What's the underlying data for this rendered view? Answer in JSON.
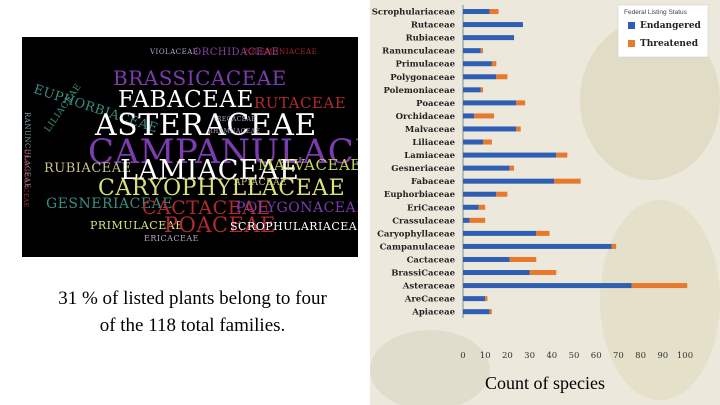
{
  "wordcloud": {
    "words": [
      {
        "text": "VIOLACEAE",
        "color": "#b8a9c9"
      },
      {
        "text": "ORCHIDACEAE",
        "color": "#8b3fa8"
      },
      {
        "text": "POLEMONIACEAE",
        "color": "#b02a30"
      },
      {
        "text": "EUPHORBIACEAE",
        "color": "#3a8f7f"
      },
      {
        "text": "BRASSICACEAE",
        "color": "#7b3cb0"
      },
      {
        "text": "LILIACEAE",
        "color": "#3a8f7f"
      },
      {
        "text": "FABACEAE",
        "color": "#ffffff"
      },
      {
        "text": "RUTACEAE",
        "color": "#b02a30"
      },
      {
        "text": "ASTERACEAE",
        "color": "#ffffff"
      },
      {
        "text": "CAMPANULACEAE",
        "color": "#7b3cb0"
      },
      {
        "text": "RUBIACEAE",
        "color": "#c8c88a"
      },
      {
        "text": "LAMIACEAE",
        "color": "#ffffff"
      },
      {
        "text": "MALVACEAE",
        "color": "#c8d458"
      },
      {
        "text": "APIACEAE",
        "color": "#c8c88a"
      },
      {
        "text": "CARYOPHYLLACEAE",
        "color": "#d9e27a"
      },
      {
        "text": "GESNERIACEAE",
        "color": "#3a8f7f"
      },
      {
        "text": "CACTACEAE",
        "color": "#b02a30"
      },
      {
        "text": "POLYGONACEAE",
        "color": "#7b3cb0"
      },
      {
        "text": "PRIMULACEAE",
        "color": "#d9e27a"
      },
      {
        "text": "POACEAE",
        "color": "#b02a30"
      },
      {
        "text": "SCROPHULARIACEAE",
        "color": "#ffffff"
      },
      {
        "text": "ERICACEAE",
        "color": "#b8a9c9"
      },
      {
        "text": "RANUNCULACEAE",
        "color": "#8aa0a8"
      },
      {
        "text": "CRASSULACEAE",
        "color": "#b02a30"
      },
      {
        "text": "RHAMNACEAE",
        "color": "#b8a9c9"
      },
      {
        "text": "ARECACEAE",
        "color": "#b8a9c9"
      }
    ]
  },
  "caption": {
    "pct": "31",
    "pct_sym": " %",
    "mid": " of listed plants belong to four",
    "line2a": "of the ",
    "num": "118",
    "line2b": " total families."
  },
  "chart_data": {
    "type": "bar",
    "orientation": "horizontal",
    "stacked": true,
    "legend_title": "Federal Listing Status",
    "legend_position": "top-right",
    "xlabel": "Count of species",
    "xlim": [
      0,
      100
    ],
    "xticks": [
      0,
      10,
      20,
      30,
      40,
      50,
      60,
      70,
      80,
      90,
      100
    ],
    "categories": [
      "Scrophulariaceae",
      "Rutaceae",
      "Rubiaceae",
      "Ranunculaceae",
      "Primulaceae",
      "Polygonaceae",
      "Polemoniaceae",
      "Poaceae",
      "Orchidaceae",
      "Malvaceae",
      "Liliaceae",
      "Lamiaceae",
      "Gesneriaceae",
      "Fabaceae",
      "Euphorbiaceae",
      "EriCaceae",
      "Crassulaceae",
      "Caryophyllaceae",
      "Campanulaceae",
      "Cactaceae",
      "BrassiCaceae",
      "Asteraceae",
      "AreCaceae",
      "Apiaceae"
    ],
    "series": [
      {
        "name": "Endangered",
        "color": "#2e5fb4",
        "values": [
          12,
          27,
          23,
          8,
          13,
          15,
          8,
          24,
          5,
          24,
          9,
          42,
          21,
          41,
          15,
          7,
          3,
          33,
          67,
          21,
          30,
          76,
          10,
          12
        ]
      },
      {
        "name": "Threatened",
        "color": "#e8782c",
        "values": [
          4,
          0,
          0,
          1,
          2,
          5,
          1,
          4,
          9,
          2,
          4,
          5,
          2,
          12,
          5,
          3,
          7,
          6,
          2,
          12,
          12,
          25,
          1,
          1
        ]
      }
    ]
  }
}
